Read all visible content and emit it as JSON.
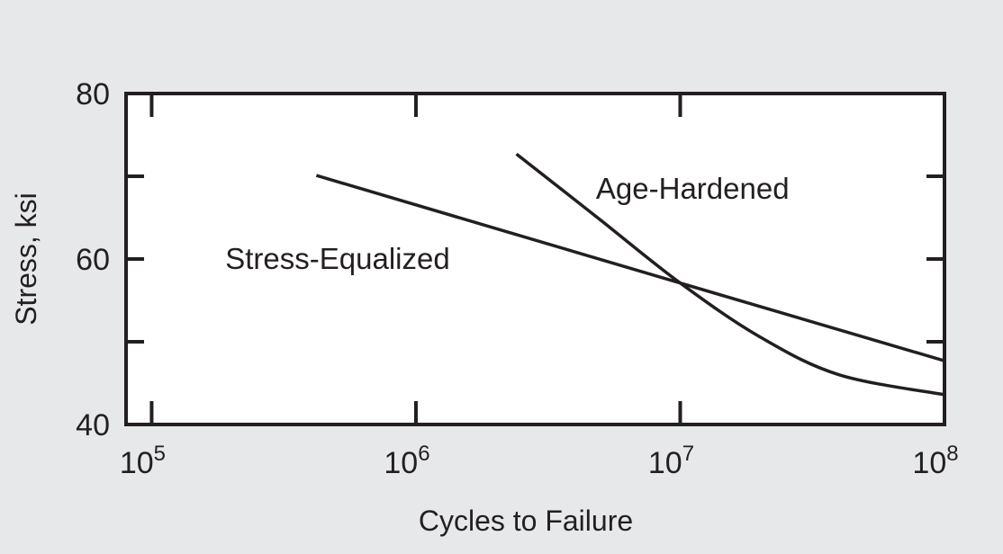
{
  "colors": {
    "background": "#e7e8ea",
    "plot_background": "#ffffff",
    "ink": "#231f20"
  },
  "chart_data": {
    "type": "line",
    "title": "",
    "xlabel": "Cycles to Failure",
    "ylabel": "Stress, ksi",
    "x_scale": "log",
    "xlim": [
      80000,
      100000000
    ],
    "ylim": [
      40,
      80
    ],
    "x_ticks": [
      {
        "base": "10",
        "exp": "5",
        "value": 100000
      },
      {
        "base": "10",
        "exp": "6",
        "value": 1000000
      },
      {
        "base": "10",
        "exp": "7",
        "value": 10000000
      },
      {
        "base": "10",
        "exp": "8",
        "value": 100000000
      }
    ],
    "y_ticks": [
      {
        "label": "80",
        "value": 80
      },
      {
        "label": "60",
        "value": 60
      },
      {
        "label": "40",
        "value": 40
      }
    ],
    "grid": false,
    "series": [
      {
        "name": "Stress-Equalized",
        "points": [
          {
            "x": 420000,
            "y": 70.1
          },
          {
            "x": 10000000,
            "y": 57.1
          },
          {
            "x": 100000000,
            "y": 47.7
          }
        ]
      },
      {
        "name": "Age-Hardened",
        "points": [
          {
            "x": 2400000,
            "y": 72.7
          },
          {
            "x": 5000000,
            "y": 64.7
          },
          {
            "x": 10000000,
            "y": 57.1
          },
          {
            "x": 20000000,
            "y": 50.6
          },
          {
            "x": 40000000,
            "y": 46.0
          },
          {
            "x": 100000000,
            "y": 43.6
          }
        ]
      }
    ],
    "annotations": [
      {
        "text": "Stress-Equalized",
        "x": 190000,
        "y": 60.1
      },
      {
        "text": "Age-Hardened",
        "x": 4800000,
        "y": 68.6
      }
    ]
  }
}
